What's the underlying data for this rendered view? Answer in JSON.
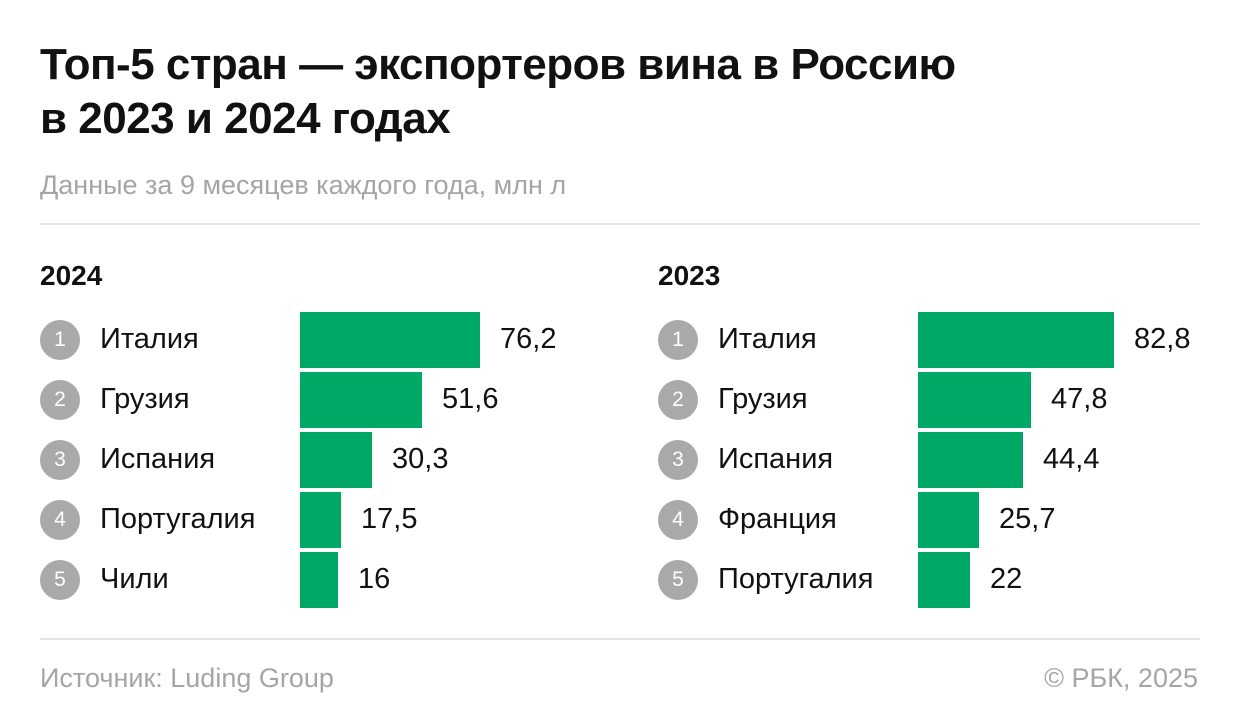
{
  "title_line1": "Топ-5 стран — экспортеров вина в Россию",
  "title_line2": "в 2023 и 2024 годах",
  "subtitle": "Данные за 9 месяцев каждого года, млн л",
  "colors": {
    "bar": "#00a865",
    "rank_circle": "#a9a9a9",
    "muted_text": "#a5a5a5"
  },
  "chart_data": [
    {
      "type": "bar",
      "orientation": "horizontal",
      "title": "2024",
      "categories": [
        "Италия",
        "Грузия",
        "Испания",
        "Португалия",
        "Чили"
      ],
      "ranks": [
        "1",
        "2",
        "3",
        "4",
        "5"
      ],
      "values": [
        76.2,
        51.6,
        30.3,
        17.5,
        16
      ],
      "value_labels": [
        "76,2",
        "51,6",
        "30,3",
        "17,5",
        "16"
      ],
      "xlim": [
        0,
        82.8
      ],
      "grid": false
    },
    {
      "type": "bar",
      "orientation": "horizontal",
      "title": "2023",
      "categories": [
        "Италия",
        "Грузия",
        "Испания",
        "Франция",
        "Португалия"
      ],
      "ranks": [
        "1",
        "2",
        "3",
        "4",
        "5"
      ],
      "values": [
        82.8,
        47.8,
        44.4,
        25.7,
        22
      ],
      "value_labels": [
        "82,8",
        "47,8",
        "44,4",
        "25,7",
        "22"
      ],
      "xlim": [
        0,
        82.8
      ],
      "grid": false
    }
  ],
  "footer": {
    "source": "Источник: Luding Group",
    "copyright": "© РБК, 2025"
  }
}
